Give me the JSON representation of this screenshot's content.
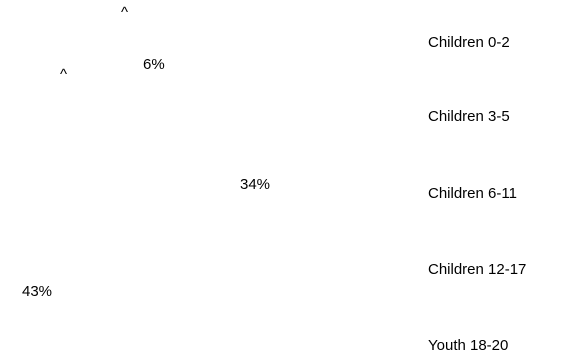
{
  "chart_data": {
    "type": "pie",
    "title": "",
    "categories": [
      "Children 0-2",
      "Children 3-5",
      "Children 6-11",
      "Children 12-17",
      "Youth 18-20"
    ],
    "values": [
      null,
      null,
      34,
      43,
      6
    ],
    "data_labels": [
      "^",
      "^",
      "34%",
      "43%",
      "6%"
    ],
    "legend": {
      "position": "right",
      "entries": [
        "Children 0-2",
        "Children 3-5",
        "Children 6-11",
        "Children 12-17",
        "Youth 18-20"
      ]
    },
    "slices_visible": false
  }
}
